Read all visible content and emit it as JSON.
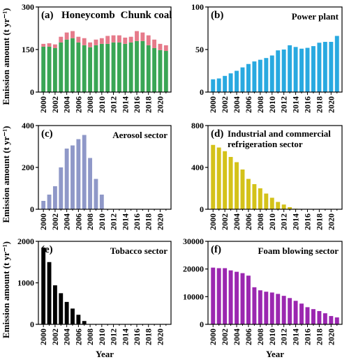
{
  "chart_data": [
    {
      "type": "bar",
      "label": "(a)",
      "stacked": true,
      "categories": [
        "2000",
        null,
        "2002",
        null,
        "2004",
        null,
        "2006",
        null,
        "2008",
        null,
        "2010",
        null,
        "2012",
        null,
        "2014",
        null,
        "2016",
        null,
        "2018",
        null,
        "2020",
        null
      ],
      "series": [
        {
          "name": "Honeycomb",
          "color": "#e67a8a",
          "values": [
            10,
            12,
            13,
            20,
            25,
            25,
            20,
            25,
            17,
            20,
            20,
            28,
            25,
            25,
            22,
            20,
            35,
            30,
            35,
            30,
            22,
            20
          ]
        },
        {
          "name": "Chunk coal",
          "color": "#3aa655",
          "values": [
            160,
            160,
            155,
            175,
            185,
            190,
            175,
            165,
            158,
            165,
            170,
            170,
            175,
            175,
            170,
            175,
            180,
            180,
            165,
            155,
            148,
            145
          ]
        }
      ],
      "ylim": [
        0,
        300
      ],
      "yticks": [
        0,
        150,
        300
      ],
      "ylabel": "Emission amount (t yr⁻¹)"
    },
    {
      "type": "bar",
      "label": "(b)",
      "title": "Power plant",
      "color": "#29a9e0",
      "categories": [
        "2000",
        null,
        "2002",
        null,
        "2004",
        null,
        "2006",
        null,
        "2008",
        null,
        "2010",
        null,
        "2012",
        null,
        "2014",
        null,
        "2016",
        null,
        "2018",
        null,
        "2020",
        null
      ],
      "values": [
        15,
        16,
        19,
        22,
        25,
        29,
        33,
        36,
        38,
        40,
        43,
        49,
        50,
        55,
        53,
        51,
        52,
        54,
        58,
        59,
        59,
        66
      ],
      "ylim": [
        0,
        100
      ],
      "yticks": [
        0,
        50,
        100
      ]
    },
    {
      "type": "bar",
      "label": "(c)",
      "title": "Aerosol sector",
      "color": "#8f98c8",
      "categories": [
        "2000",
        null,
        "2002",
        null,
        "2004",
        null,
        "2006",
        null,
        "2008",
        null,
        "2010",
        null,
        "2012",
        null,
        "2014",
        null,
        "2016",
        null,
        "2018",
        null,
        "2020",
        null
      ],
      "values": [
        40,
        70,
        110,
        200,
        290,
        305,
        335,
        355,
        245,
        145,
        70,
        0,
        0,
        0,
        0,
        0,
        0,
        0,
        0,
        0,
        0,
        0
      ],
      "ylim": [
        0,
        400
      ],
      "yticks": [
        0,
        200,
        400
      ],
      "ylabel": "Emission amount (t yr⁻¹)"
    },
    {
      "type": "bar",
      "label": "(d)",
      "title": [
        "Industrial and commercial",
        "refrigeration sector"
      ],
      "color": "#d4c21a",
      "categories": [
        "2000",
        null,
        "2002",
        null,
        "2004",
        null,
        "2006",
        null,
        "2008",
        null,
        "2010",
        null,
        "2012",
        null,
        "2014",
        null,
        "2016",
        null,
        "2018",
        null,
        "2020",
        null
      ],
      "values": [
        615,
        590,
        555,
        500,
        450,
        380,
        290,
        240,
        200,
        150,
        110,
        70,
        45,
        20,
        5,
        0,
        0,
        0,
        0,
        0,
        0,
        0
      ],
      "ylim": [
        0,
        800
      ],
      "yticks": [
        0,
        400,
        800
      ]
    },
    {
      "type": "bar",
      "label": "(e)",
      "title": "Tobacco sector",
      "color": "#000000",
      "categories": [
        "2000",
        null,
        "2002",
        null,
        "2004",
        null,
        "2006",
        null,
        "2008",
        null,
        "2010",
        null,
        "2012",
        null,
        "2014",
        null,
        "2016",
        null,
        "2018",
        null,
        "2020",
        null
      ],
      "values": [
        1850,
        1500,
        940,
        750,
        540,
        380,
        230,
        80,
        0,
        0,
        0,
        0,
        0,
        0,
        0,
        0,
        0,
        0,
        0,
        0,
        0,
        0
      ],
      "ylim": [
        0,
        2000
      ],
      "yticks": [
        0,
        1000,
        2000
      ],
      "ylabel": "Emission amount (t yr⁻¹)",
      "xlabel": "Year"
    },
    {
      "type": "bar",
      "label": "(f)",
      "title": "Foam blowing sector",
      "color": "#9b27b0",
      "categories": [
        "2000",
        null,
        "2002",
        null,
        "2004",
        null,
        "2006",
        null,
        "2008",
        null,
        "2010",
        null,
        "2012",
        null,
        "2014",
        null,
        "2016",
        null,
        "2018",
        null,
        "2020",
        null
      ],
      "values": [
        20500,
        20300,
        20300,
        19500,
        19000,
        18500,
        17600,
        13400,
        12300,
        11800,
        11500,
        11000,
        10300,
        9500,
        8500,
        7500,
        6200,
        5500,
        4800,
        4000,
        3000,
        2500
      ],
      "ylim": [
        0,
        30000
      ],
      "yticks": [
        0,
        10000,
        20000,
        30000
      ],
      "xlabel": "Year"
    }
  ]
}
